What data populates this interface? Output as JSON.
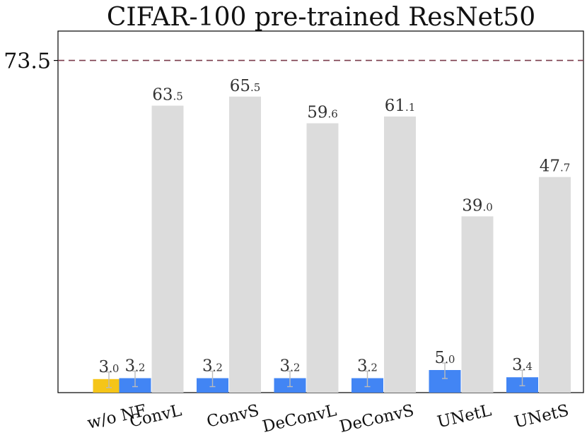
{
  "chart_data": {
    "type": "bar",
    "title": "CIFAR-100 pre-trained ResNet50",
    "xlabel": "",
    "ylabel": "",
    "ylim": [
      0,
      80
    ],
    "reference_line": {
      "value": 73.5,
      "label": "73.5",
      "color": "#7a3a4a",
      "style": "dashed"
    },
    "categories": [
      "w/o NF",
      "ConvL",
      "ConvS",
      "DeConvL",
      "DeConvS",
      "UNetL",
      "UNetS"
    ],
    "series": [
      {
        "values": [
          3.0,
          3.2,
          3.2,
          3.2,
          3.2,
          5.0,
          3.4
        ],
        "colors": [
          "#f5c518",
          "#4285f4",
          "#4285f4",
          "#4285f4",
          "#4285f4",
          "#4285f4",
          "#4285f4"
        ],
        "labels": [
          [
            "3",
            ".0"
          ],
          [
            "3",
            ".2"
          ],
          [
            "3",
            ".2"
          ],
          [
            "3",
            ".2"
          ],
          [
            "3",
            ".2"
          ],
          [
            "5",
            ".0"
          ],
          [
            "3",
            ".4"
          ]
        ],
        "error_bars": true
      },
      {
        "values": [
          null,
          63.5,
          65.5,
          59.6,
          61.1,
          39.0,
          47.7
        ],
        "color": "#dcdcdc",
        "labels": [
          null,
          [
            "63",
            ".5"
          ],
          [
            "65",
            ".5"
          ],
          [
            "59",
            ".6"
          ],
          [
            "61",
            ".1"
          ],
          [
            "39",
            ".0"
          ],
          [
            "47",
            ".7"
          ]
        ]
      }
    ],
    "error_color": "#bbbbbb",
    "grid": false,
    "legend": "none"
  }
}
